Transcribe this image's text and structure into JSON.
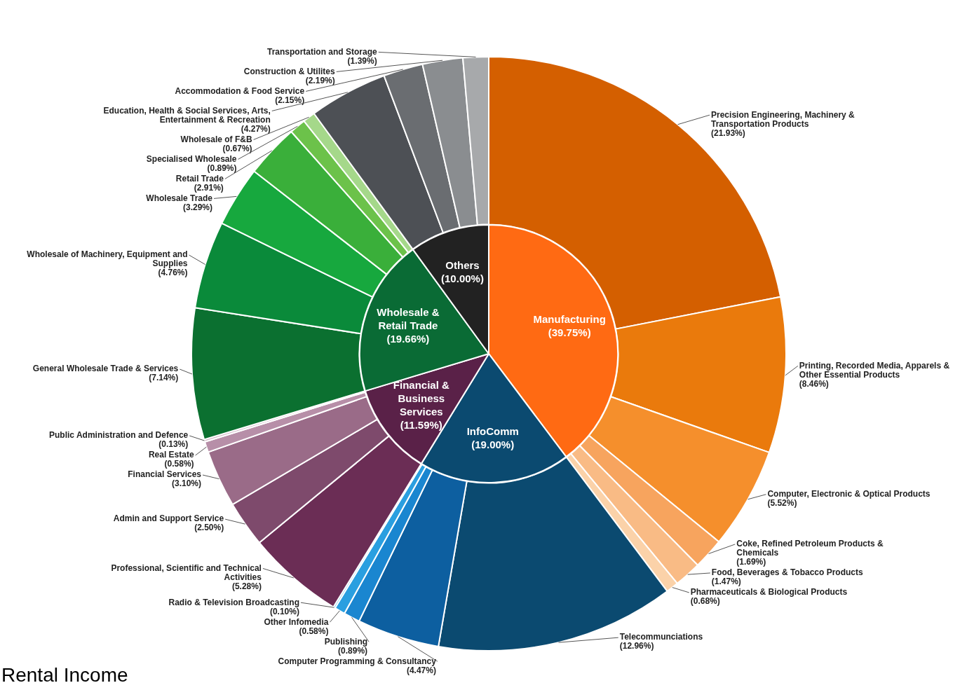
{
  "chart_data": [
    {
      "type": "pie",
      "legend": false,
      "categories": [
        "Manufacturing",
        "InfoComm",
        "Financial & Business Services",
        "Wholesale & Retail Trade",
        "Others"
      ],
      "values": [
        39.75,
        19.0,
        11.59,
        19.66,
        10.0
      ],
      "value_labels": [
        "(39.75%)",
        "(19.00%)",
        "(11.59%)",
        "(19.66%)",
        "(10.00%)"
      ],
      "colors": [
        "#ff6a13",
        "#0b4a70",
        "#5a2148",
        "#0a6b35",
        "#222222"
      ]
    },
    {
      "type": "donut",
      "legend": false,
      "annotations": [
        "Rental Income"
      ],
      "categories": [
        "Precision Engineering, Machinery & Transportation Products",
        "Printing, Recorded Media, Apparels & Other Essential Products",
        "Computer, Electronic & Optical Products",
        "Coke, Refined Petroleum Products & Chemicals",
        "Food, Beverages & Tobacco Products",
        "Pharmaceuticals & Biological Products",
        "Telecommunciations",
        "Computer Programming & Consultancy",
        "Publishing",
        "Other Infomedia",
        "Radio & Television Broadcasting",
        "Professional, Scientific and Technical Activities",
        "Admin and Support Service",
        "Financial Services",
        "Real Estate",
        "Public Administration and Defence",
        "General Wholesale Trade & Services",
        "Wholesale of Machinery, Equipment and Supplies",
        "Wholesale Trade",
        "Retail Trade",
        "Specialised Wholesale",
        "Wholesale of F&B",
        "Education, Health & Social Services, Arts, Entertainment & Recreation",
        "Accommodation & Food Service",
        "Construction & Utilites",
        "Transportation and Storage"
      ],
      "values": [
        21.93,
        8.46,
        5.52,
        1.69,
        1.47,
        0.68,
        12.96,
        4.47,
        0.89,
        0.58,
        0.1,
        5.28,
        2.5,
        3.1,
        0.58,
        0.13,
        7.14,
        4.76,
        3.29,
        2.91,
        0.89,
        0.67,
        4.27,
        2.15,
        2.19,
        1.39
      ],
      "value_labels": [
        "(21.93%)",
        "(8.46%)",
        "(5.52%)",
        "(1.69%)",
        "(1.47%)",
        "(0.68%)",
        "(12.96%)",
        "(4.47%)",
        "(0.89%)",
        "(0.58%)",
        "(0.10%)",
        "(5.28%)",
        "(2.50%)",
        "(3.10%)",
        "(0.58%)",
        "(0.13%)",
        "(7.14%)",
        "(4.76%)",
        "(3.29%)",
        "(2.91%)",
        "(0.89%)",
        "(0.67%)",
        "(4.27%)",
        "(2.15%)",
        "(2.19%)",
        "(1.39%)"
      ],
      "colors": [
        "#d45f00",
        "#ea7a0c",
        "#f58f2c",
        "#f7a45e",
        "#f9bb85",
        "#fbd2a9",
        "#0b4a70",
        "#0d5fa0",
        "#1a86d0",
        "#2a9fe0",
        "#5bbce8",
        "#6b2d55",
        "#7e4a6c",
        "#9a6b88",
        "#b78fa8",
        "#d6bccb",
        "#0b7030",
        "#0a8a3a",
        "#17a83e",
        "#3aaf3a",
        "#6cc24a",
        "#a5d88a",
        "#4d5055",
        "#6a6d71",
        "#8a8d90",
        "#a7a9ab"
      ]
    }
  ]
}
